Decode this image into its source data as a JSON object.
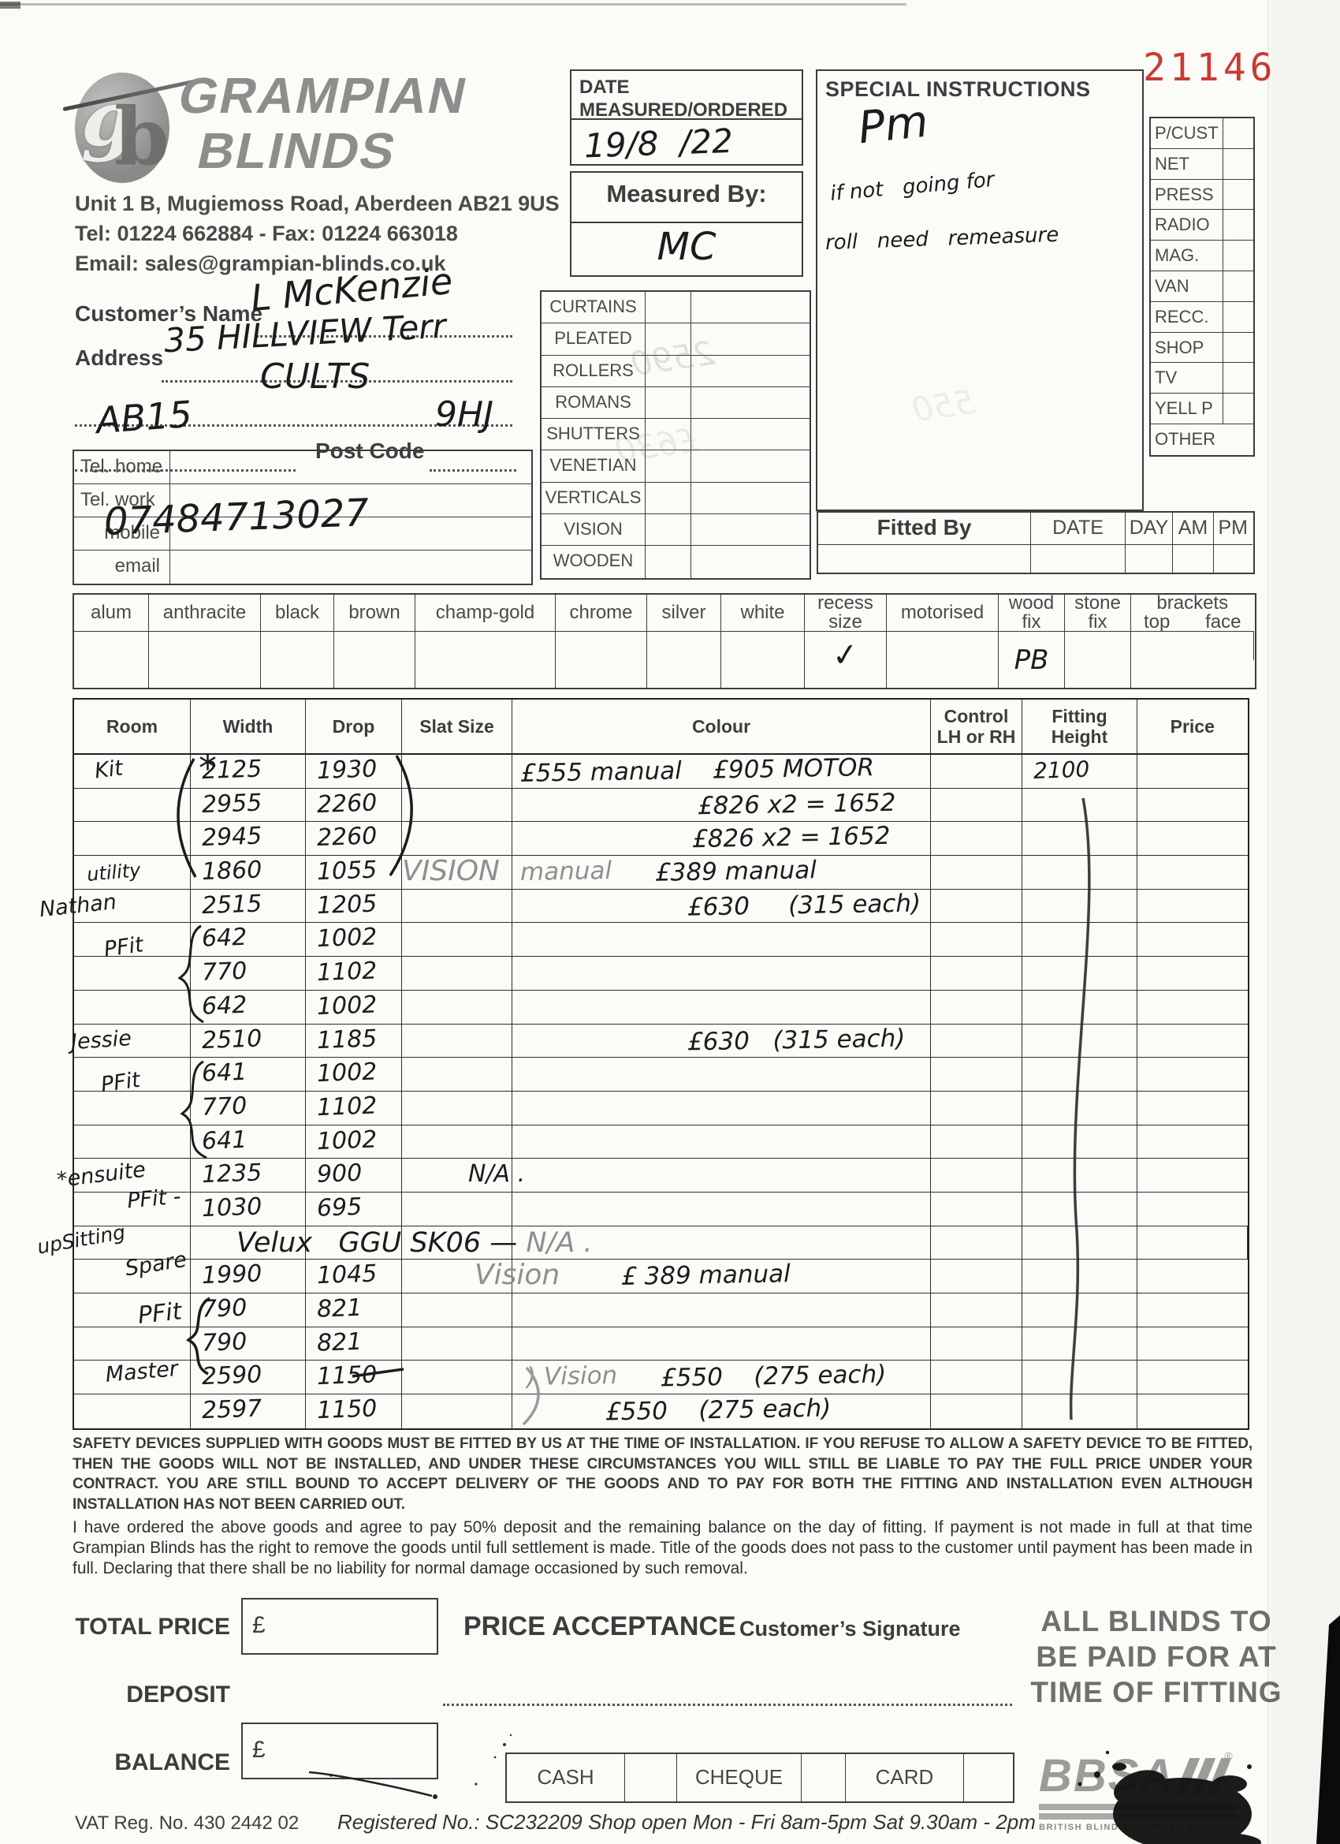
{
  "stamp_number": "21146",
  "header": {
    "company_line1": "GRAMPIAN",
    "company_line2": "BLINDS",
    "address": "Unit 1 B, Mugiemoss Road, Aberdeen AB21 9US",
    "tel_fax": "Tel: 01224 662884   -   Fax: 01224 663018",
    "email": "Email: sales@grampian-blinds.co.uk"
  },
  "date_box": {
    "label1": "DATE",
    "label2": "MEASURED/ORDERED",
    "value": "19/8  /22"
  },
  "measured_by": {
    "label": "Measured By:",
    "value": "MC"
  },
  "special_instructions": {
    "title": "SPECIAL INSTRUCTIONS",
    "lines": [
      "Pm",
      "if not   going for",
      "roll   need   remeasure"
    ]
  },
  "media_checklist": [
    "P/CUST",
    "NET",
    "PRESS",
    "RADIO",
    "MAG.",
    "VAN",
    "RECC.",
    "SHOP",
    "TV",
    "YELL P",
    "OTHER"
  ],
  "customer": {
    "name_label": "Customer’s Name",
    "name_value": "L McKenzie",
    "address_label": "Address",
    "address_value1": "35 HILLVIEW Terr",
    "address_value2": "CULTS",
    "address_value3": "AB15",
    "postcode_label": "Post Code",
    "postcode_value": "9HJ",
    "phones": [
      {
        "label": "Tel. home",
        "value": ""
      },
      {
        "label": "Tel. work",
        "value": ""
      },
      {
        "label": "mobile",
        "value": "07484713027"
      },
      {
        "label": "email",
        "value": ""
      }
    ]
  },
  "product_types": [
    "CURTAINS",
    "PLEATED",
    "ROLLERS",
    "ROMANS",
    "SHUTTERS",
    "VENETIAN",
    "VERTICALS",
    "VISION",
    "WOODEN"
  ],
  "fitted_by": {
    "label": "Fitted By",
    "columns": [
      "DATE",
      "DAY",
      "AM",
      "PM"
    ]
  },
  "options_row": {
    "cells": [
      {
        "label": "alum",
        "value": ""
      },
      {
        "label": "anthracite",
        "value": ""
      },
      {
        "label": "black",
        "value": ""
      },
      {
        "label": "brown",
        "value": ""
      },
      {
        "label": "champ-gold",
        "value": ""
      },
      {
        "label": "chrome",
        "value": ""
      },
      {
        "label": "silver",
        "value": ""
      },
      {
        "label": "white",
        "value": ""
      },
      {
        "label": "recess size",
        "value": "✓"
      },
      {
        "label": "motorised",
        "value": ""
      },
      {
        "label": "wood fix",
        "value": "PB"
      },
      {
        "label": "stone fix",
        "value": ""
      }
    ],
    "brackets_label": "brackets",
    "brackets_sub": [
      "top",
      "face"
    ]
  },
  "order_table": {
    "headers": [
      "Room",
      "Width",
      "Drop",
      "Slat Size",
      "Colour",
      "Control LH or RH",
      "Fitting Height",
      "Price"
    ],
    "rows": [
      {
        "room": "Kit",
        "width": "2125",
        "drop": "1930",
        "colour": "£555 manual    £905 MOTOR",
        "fit": "2100"
      },
      {
        "width": "2955",
        "drop": "2260",
        "colour": "£826 x2 = 1652",
        "indent": 235
      },
      {
        "width": "2945",
        "drop": "2260",
        "colour": "£826 x2 = 1652",
        "indent": 228
      },
      {
        "room": "utility",
        "width": "1860",
        "drop": "1055",
        "slat_pencil": "VISION",
        "colour_pencil": "manual",
        "colour": "£389 manual"
      },
      {
        "room": "Nathan",
        "width": "2515",
        "drop": "1205",
        "colour": "£630     (315 each)",
        "indent": 222
      },
      {
        "room": "PFit",
        "width": "642",
        "drop": "1002"
      },
      {
        "width": "770",
        "drop": "1102"
      },
      {
        "width": "642",
        "drop": "1002"
      },
      {
        "room": "Jessie",
        "width": "2510",
        "drop": "1185",
        "colour": "£630   (315 each)",
        "indent": 222
      },
      {
        "room": "PFit",
        "width": "641",
        "drop": "1002"
      },
      {
        "width": "770",
        "drop": "1102"
      },
      {
        "width": "641",
        "drop": "1002"
      },
      {
        "room": "*ensuite",
        "width": "1235",
        "drop": "900",
        "slat": "N/A .",
        "slat_ml": 84
      },
      {
        "room": "PFit -",
        "width": "1030",
        "drop": "695"
      },
      {
        "room": "upSitting",
        "span_pen": "Velux   GGU SK06 —",
        "span_pencil": " N/A ."
      },
      {
        "room": "Spare",
        "width": "1990",
        "drop": "1045",
        "slat_pencil": "Vision",
        "slat_ml": 92,
        "colour": "£ 389 manual",
        "indent": 138
      },
      {
        "room": "PFit",
        "width": "790",
        "drop": "821"
      },
      {
        "width": "790",
        "drop": "821"
      },
      {
        "room": "Master",
        "width": "2590",
        "drop": "1150",
        "strike": true,
        "colour_pencil": ") Vision",
        "colour": "£550    (275 each)",
        "indent": 18
      },
      {
        "width": "2597",
        "drop": "1150",
        "colour": "£550    (275 each)",
        "indent": 118
      }
    ]
  },
  "safety_text": "SAFETY DEVICES SUPPLIED WITH GOODS MUST BE FITTED BY US AT THE TIME OF INSTALLATION. IF YOU REFUSE TO ALLOW A SAFETY DEVICE TO BE FITTED, THEN THE GOODS WILL NOT BE INSTALLED, AND UNDER THESE CIRCUMSTANCES YOU WILL STILL BE LIABLE TO PAY THE FULL PRICE UNDER YOUR CONTRACT. YOU ARE STILL BOUND TO ACCEPT DELIVERY OF THE GOODS AND TO PAY FOR BOTH THE FITTING AND INSTALLATION EVEN ALTHOUGH INSTALLATION HAS NOT BEEN CARRIED OUT.",
  "agreement_text": "I have ordered the above goods and agree to pay 50% deposit and the remaining balance on the day of fitting. If payment is not made in full at that time Grampian Blinds has the right to remove the goods until full settlement is made. Title of the goods does not pass to the customer until payment has been made in full. Declaring that there shall be no liability for normal damage occasioned by such removal.",
  "totals": [
    {
      "label": "TOTAL PRICE",
      "currency": "£",
      "value": ""
    },
    {
      "label": "DEPOSIT",
      "currency": "£",
      "value": ""
    },
    {
      "label": "BALANCE",
      "currency": "£",
      "value": ""
    }
  ],
  "price_acceptance": {
    "title": "PRICE ACCEPTANCE",
    "signature_label": "Customer’s Signature"
  },
  "payment_methods": [
    "CASH",
    "CHEQUE",
    "CARD"
  ],
  "payment_notice": "ALL BLINDS TO BE PAID FOR AT TIME OF FITTING",
  "bbsa": {
    "logo": "BBSA",
    "caption": "BRITISH BLIND & SHUTTER ASSOC"
  },
  "footer": {
    "vat": "VAT Reg. No. 430 2442 02",
    "registered": "Registered No.: SC232209  Shop open Mon - Fri 8am-5pm  Sat 9.30am - 2pm"
  },
  "scan_artifacts": {
    "ghost_marks": [
      "2590",
      "£630",
      "550"
    ]
  },
  "colors": {
    "stamp_red": "#cb3a33",
    "pen": "#1c1c1c",
    "pencil": "#8f8f8f",
    "print_grey": "#8d8d8b"
  }
}
